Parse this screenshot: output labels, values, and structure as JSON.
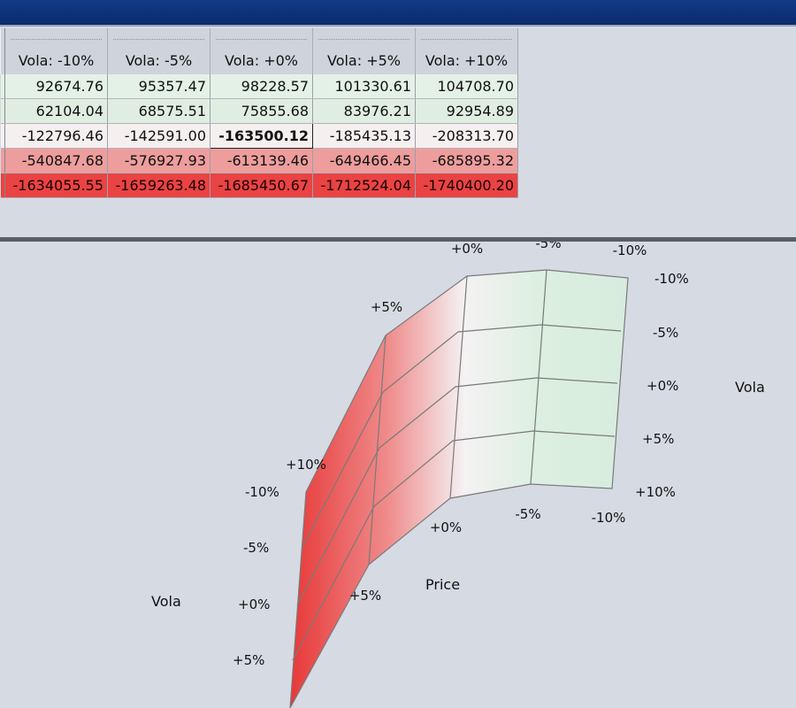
{
  "table": {
    "columns": [
      "Vola: -10%",
      "Vola: -5%",
      "Vola: +0%",
      "Vola: +5%",
      "Vola: +10%"
    ],
    "rows": [
      [
        "92674.76",
        "95357.47",
        "98228.57",
        "101330.61",
        "104708.70"
      ],
      [
        "62104.04",
        "68575.51",
        "75855.68",
        "83976.21",
        "92954.89"
      ],
      [
        "-122796.46",
        "-142591.00",
        "-163500.12",
        "-185435.13",
        "-208313.70"
      ],
      [
        "-540847.68",
        "-576927.93",
        "-613139.46",
        "-649466.45",
        "-685895.32"
      ],
      [
        "-1634055.55",
        "-1659263.48",
        "-1685450.67",
        "-1712524.04",
        "-1740400.20"
      ]
    ],
    "highlighted": {
      "row": 2,
      "col": 2
    }
  },
  "chart": {
    "left_vola_title": "Vola",
    "right_vola_title": "Vola",
    "price_title": "Price",
    "left_vola_ticks": [
      "-10%",
      "-5%",
      "+0%",
      "+5%"
    ],
    "right_vola_ticks": [
      "-10%",
      "-5%",
      "+0%",
      "+5%",
      "+10%"
    ],
    "front_price_ticks": [
      "+10%",
      "+5%",
      "+0%",
      "-5%",
      "-10%"
    ],
    "top_price_ticks": [
      "+5%",
      "+0%",
      "-5%",
      "-10%"
    ],
    "colors": {
      "low": "#e03a3a",
      "mid": "#f2f2f2",
      "high": "#d6eddc"
    }
  }
}
